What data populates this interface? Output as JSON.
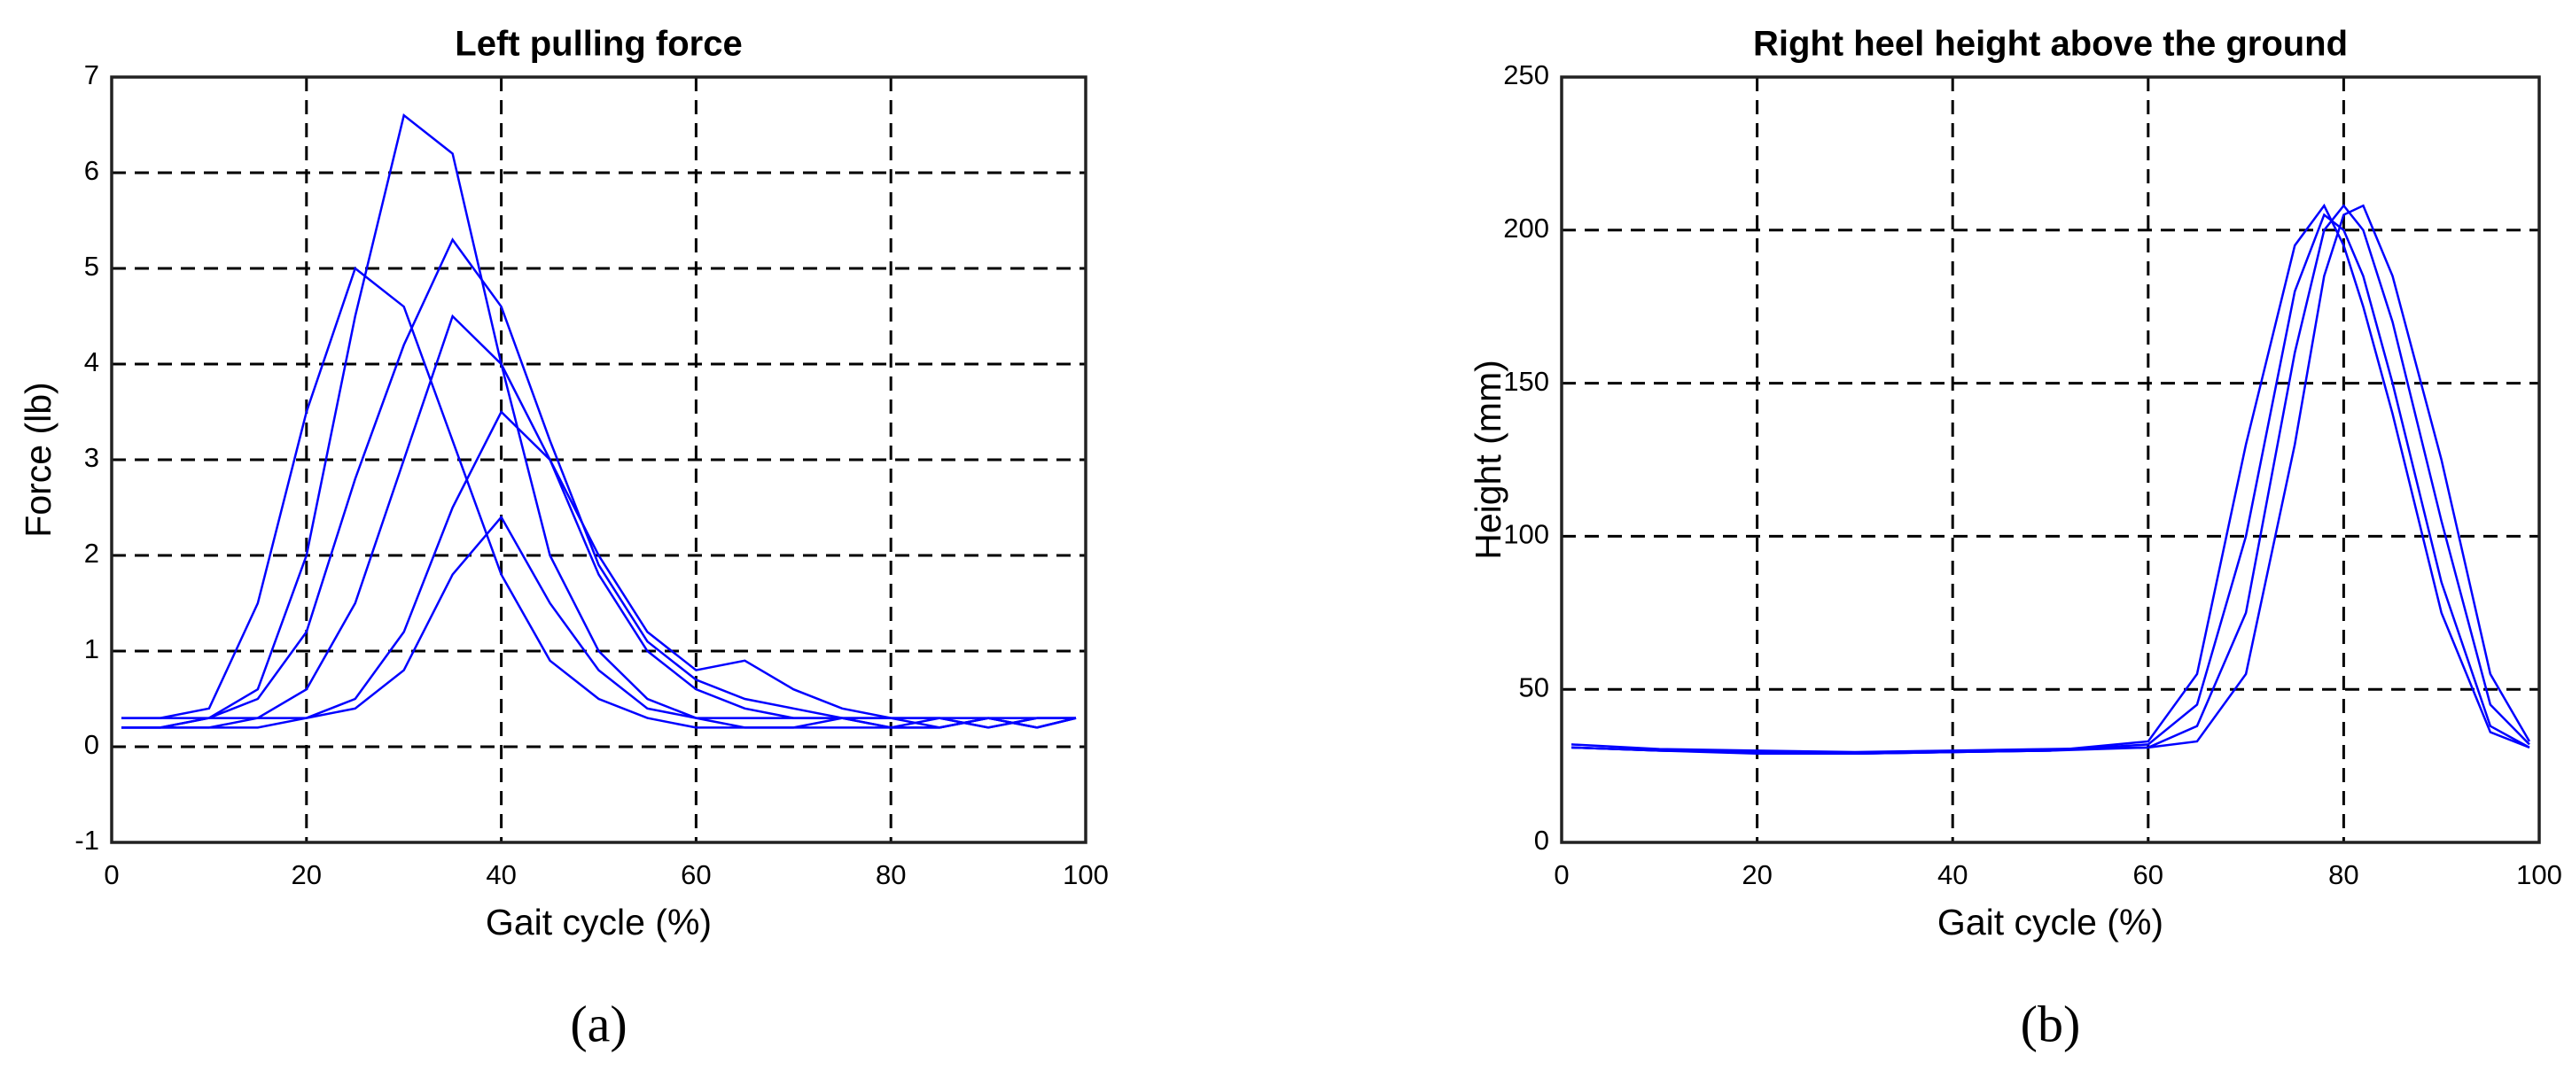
{
  "chart_data": [
    {
      "type": "line",
      "title": "Left pulling force",
      "x_label": "Gait cycle (%)",
      "y_label": "Force (lb)",
      "panel_label": "(a)",
      "xlim": [
        0,
        100
      ],
      "xticks": [
        0,
        20,
        40,
        60,
        80,
        100
      ],
      "ylim": [
        -1,
        7
      ],
      "yticks": [
        -1,
        0,
        1,
        2,
        3,
        4,
        5,
        6,
        7
      ],
      "grid": true,
      "x": [
        1,
        5,
        10,
        15,
        20,
        25,
        30,
        35,
        40,
        45,
        50,
        55,
        60,
        65,
        70,
        75,
        80,
        85,
        90,
        95,
        99
      ],
      "series": [
        {
          "color": "#0000ff",
          "values": [
            0.3,
            0.3,
            0.4,
            1.5,
            3.5,
            5.0,
            4.6,
            3.2,
            1.8,
            0.9,
            0.5,
            0.3,
            0.2,
            0.2,
            0.2,
            0.3,
            0.2,
            0.2,
            0.3,
            0.2,
            0.3
          ]
        },
        {
          "color": "#0000ff",
          "values": [
            0.2,
            0.2,
            0.3,
            0.6,
            2.0,
            4.5,
            6.6,
            6.2,
            4.0,
            2.0,
            1.0,
            0.5,
            0.3,
            0.3,
            0.3,
            0.3,
            0.2,
            0.3,
            0.2,
            0.3,
            0.3
          ]
        },
        {
          "color": "#0000ff",
          "values": [
            0.2,
            0.2,
            0.2,
            0.3,
            0.6,
            1.5,
            3.0,
            4.5,
            4.0,
            3.0,
            1.8,
            1.0,
            0.6,
            0.4,
            0.3,
            0.3,
            0.3,
            0.2,
            0.3,
            0.2,
            0.3
          ]
        },
        {
          "color": "#0000ff",
          "values": [
            0.2,
            0.2,
            0.2,
            0.2,
            0.3,
            0.5,
            1.2,
            2.5,
            3.5,
            3.0,
            2.0,
            1.2,
            0.8,
            0.9,
            0.6,
            0.4,
            0.3,
            0.3,
            0.3,
            0.3,
            0.3
          ]
        },
        {
          "color": "#0000ff",
          "values": [
            0.3,
            0.3,
            0.3,
            0.3,
            0.3,
            0.4,
            0.8,
            1.8,
            2.4,
            1.5,
            0.8,
            0.4,
            0.3,
            0.2,
            0.2,
            0.2,
            0.2,
            0.2,
            0.3,
            0.2,
            0.3
          ]
        },
        {
          "color": "#0000ff",
          "values": [
            0.2,
            0.2,
            0.3,
            0.5,
            1.2,
            2.8,
            4.2,
            5.3,
            4.6,
            3.2,
            1.9,
            1.1,
            0.7,
            0.5,
            0.4,
            0.3,
            0.3,
            0.3,
            0.2,
            0.3,
            0.3
          ]
        }
      ]
    },
    {
      "type": "line",
      "title": "Right heel height above the ground",
      "x_label": "Gait cycle (%)",
      "y_label": "Height (mm)",
      "panel_label": "(b)",
      "xlim": [
        0,
        100
      ],
      "xticks": [
        0,
        20,
        40,
        60,
        80,
        100
      ],
      "ylim": [
        0,
        250
      ],
      "yticks": [
        0,
        50,
        100,
        150,
        200,
        250
      ],
      "grid": true,
      "x": [
        1,
        10,
        20,
        30,
        40,
        50,
        60,
        65,
        70,
        75,
        78,
        80,
        82,
        85,
        90,
        95,
        99
      ],
      "series": [
        {
          "color": "#0000ff",
          "values": [
            31,
            30,
            29.5,
            29,
            29.5,
            30,
            32,
            45,
            100,
            180,
            205,
            200,
            185,
            150,
            85,
            38,
            31
          ]
        },
        {
          "color": "#0000ff",
          "values": [
            31,
            30,
            29.5,
            29,
            29.5,
            30,
            31,
            38,
            75,
            160,
            200,
            208,
            200,
            170,
            105,
            45,
            32
          ]
        },
        {
          "color": "#0000ff",
          "values": [
            32,
            30.5,
            30,
            29.5,
            30,
            30.5,
            31,
            33,
            55,
            130,
            185,
            205,
            208,
            185,
            125,
            55,
            33
          ]
        },
        {
          "color": "#0000ff",
          "values": [
            31,
            30,
            29,
            29,
            29.5,
            30,
            33,
            55,
            130,
            195,
            208,
            195,
            175,
            140,
            75,
            36,
            31
          ]
        }
      ]
    }
  ]
}
